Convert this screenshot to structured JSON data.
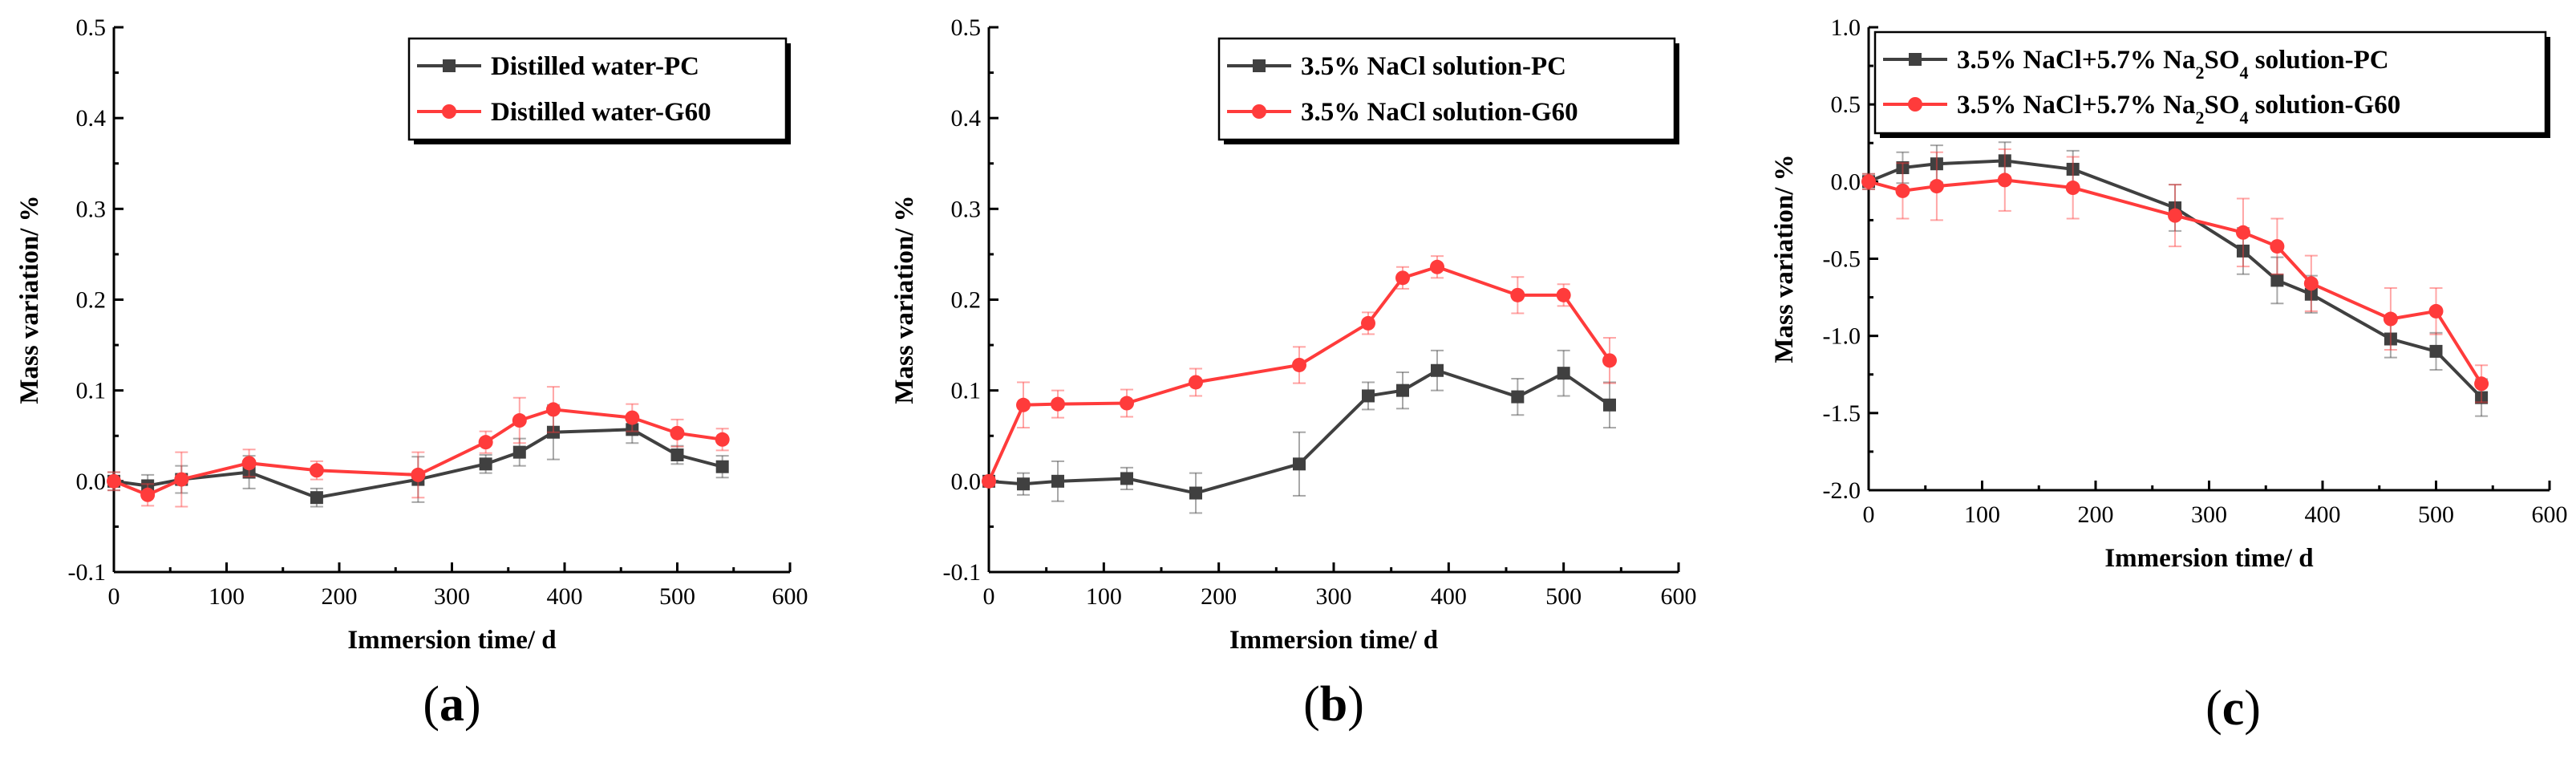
{
  "chart_data": [
    {
      "id": "a",
      "type": "line",
      "panel_label": "a",
      "xlabel": "Immersion time/ d",
      "ylabel": "Mass variation/ %",
      "xlim": [
        0,
        600
      ],
      "ylim": [
        -0.1,
        0.5
      ],
      "xticks": [
        "0",
        "100",
        "200",
        "300",
        "400",
        "500",
        "600"
      ],
      "yticks": [
        "-0.1",
        "0.0",
        "0.1",
        "0.2",
        "0.3",
        "0.4",
        "0.5"
      ],
      "legend_position": "top-right",
      "series": [
        {
          "name": "Distilled water-PC",
          "color": "#404040",
          "marker": "square",
          "x": [
            0,
            30,
            60,
            120,
            180,
            270,
            330,
            360,
            390,
            460,
            500,
            540
          ],
          "y": [
            0.0,
            -0.005,
            0.002,
            0.01,
            -0.018,
            0.002,
            0.019,
            0.032,
            0.054,
            0.057,
            0.029,
            0.016
          ],
          "err": [
            0.01,
            0.012,
            0.015,
            0.018,
            0.01,
            0.025,
            0.01,
            0.015,
            0.03,
            0.015,
            0.01,
            0.012
          ]
        },
        {
          "name": "Distilled water-G60",
          "color": "#ff3b3b",
          "marker": "circle",
          "x": [
            0,
            30,
            60,
            120,
            180,
            270,
            330,
            360,
            390,
            460,
            500,
            540
          ],
          "y": [
            0.0,
            -0.015,
            0.002,
            0.02,
            0.012,
            0.007,
            0.043,
            0.067,
            0.079,
            0.07,
            0.053,
            0.046
          ],
          "err": [
            0.01,
            0.012,
            0.03,
            0.015,
            0.01,
            0.025,
            0.012,
            0.025,
            0.025,
            0.015,
            0.015,
            0.012
          ]
        }
      ]
    },
    {
      "id": "b",
      "type": "line",
      "panel_label": "b",
      "xlabel": "Immersion time/ d",
      "ylabel": "Mass variation/ %",
      "xlim": [
        0,
        600
      ],
      "ylim": [
        -0.1,
        0.5
      ],
      "xticks": [
        "0",
        "100",
        "200",
        "300",
        "400",
        "500",
        "600"
      ],
      "yticks": [
        "-0.1",
        "0.0",
        "0.1",
        "0.2",
        "0.3",
        "0.4",
        "0.5"
      ],
      "legend_position": "top-right",
      "series": [
        {
          "name": "3.5% NaCl solution-PC",
          "color": "#404040",
          "marker": "square",
          "x": [
            0,
            30,
            60,
            120,
            180,
            270,
            330,
            360,
            390,
            460,
            500,
            540
          ],
          "y": [
            0.0,
            -0.003,
            0.0,
            0.003,
            -0.013,
            0.019,
            0.094,
            0.1,
            0.122,
            0.093,
            0.119,
            0.084
          ],
          "err": [
            0.005,
            0.012,
            0.022,
            0.012,
            0.022,
            0.035,
            0.015,
            0.02,
            0.022,
            0.02,
            0.025,
            0.025
          ]
        },
        {
          "name": "3.5% NaCl solution-G60",
          "color": "#ff3b3b",
          "marker": "circle",
          "x": [
            0,
            30,
            60,
            120,
            180,
            270,
            330,
            360,
            390,
            460,
            500,
            540
          ],
          "y": [
            0.0,
            0.084,
            0.085,
            0.086,
            0.109,
            0.128,
            0.174,
            0.224,
            0.236,
            0.205,
            0.205,
            0.133
          ],
          "err": [
            0.005,
            0.025,
            0.015,
            0.015,
            0.015,
            0.02,
            0.012,
            0.012,
            0.012,
            0.02,
            0.012,
            0.025
          ]
        }
      ]
    },
    {
      "id": "c",
      "type": "line",
      "panel_label": "c",
      "xlabel": "Immersion time/ d",
      "ylabel": "Mass variation/ %",
      "xlim": [
        0,
        600
      ],
      "ylim": [
        -2.0,
        1.0
      ],
      "xticks": [
        "0",
        "100",
        "200",
        "300",
        "400",
        "500",
        "600"
      ],
      "yticks": [
        "-2.0",
        "-1.5",
        "-1.0",
        "-0.5",
        "0.0",
        "0.5",
        "1.0"
      ],
      "legend_position": "top-right",
      "series": [
        {
          "name": "3.5% NaCl+5.7% Na2SO4 solution-PC",
          "name_parts": [
            {
              "text": "3.5% NaCl+5.7% Na",
              "sub": false
            },
            {
              "text": "2",
              "sub": true
            },
            {
              "text": "SO",
              "sub": false
            },
            {
              "text": "4",
              "sub": true
            },
            {
              "text": " solution-PC",
              "sub": false
            }
          ],
          "color": "#404040",
          "marker": "square",
          "x": [
            0,
            30,
            60,
            120,
            180,
            270,
            330,
            360,
            390,
            460,
            500,
            540
          ],
          "y": [
            0.0,
            0.09,
            0.115,
            0.135,
            0.08,
            -0.17,
            -0.45,
            -0.64,
            -0.73,
            -1.02,
            -1.1,
            -1.4
          ],
          "err": [
            0.05,
            0.1,
            0.12,
            0.12,
            0.12,
            0.15,
            0.15,
            0.15,
            0.12,
            0.12,
            0.12,
            0.12
          ]
        },
        {
          "name": "3.5% NaCl+5.7% Na2SO4 solution-G60",
          "name_parts": [
            {
              "text": "3.5% NaCl+5.7% Na",
              "sub": false
            },
            {
              "text": "2",
              "sub": true
            },
            {
              "text": "SO",
              "sub": false
            },
            {
              "text": "4",
              "sub": true
            },
            {
              "text": " solution-G60",
              "sub": false
            }
          ],
          "color": "#ff3b3b",
          "marker": "circle",
          "x": [
            0,
            30,
            60,
            120,
            180,
            270,
            330,
            360,
            390,
            460,
            500,
            540
          ],
          "y": [
            0.0,
            -0.06,
            -0.03,
            0.01,
            -0.04,
            -0.22,
            -0.33,
            -0.42,
            -0.66,
            -0.89,
            -0.84,
            -1.31
          ],
          "err": [
            0.05,
            0.18,
            0.22,
            0.2,
            0.2,
            0.2,
            0.22,
            0.18,
            0.18,
            0.2,
            0.15,
            0.12
          ]
        }
      ]
    }
  ]
}
